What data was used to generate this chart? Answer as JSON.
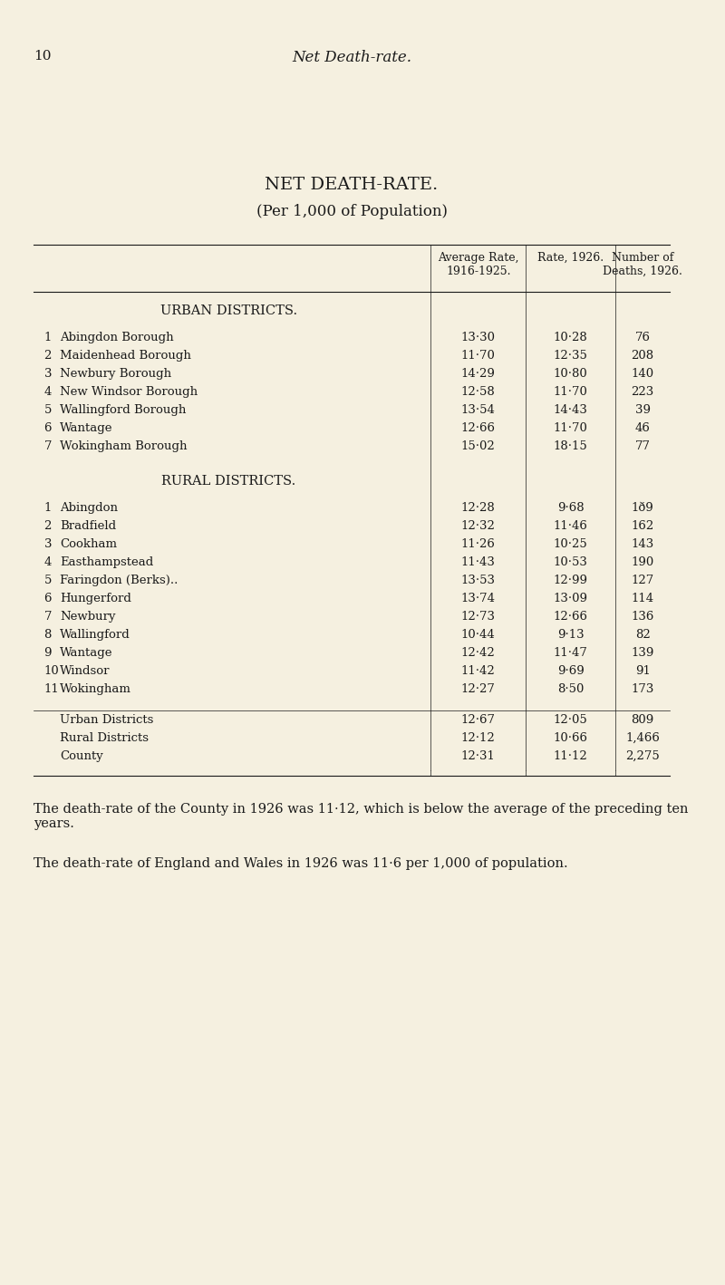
{
  "page_number": "10",
  "page_header": "Net Death-rate.",
  "title": "NET DEATH-RATE.",
  "subtitle": "(Per 1,000 of Population)",
  "col_headers": [
    "Average Rate,\n1916-1925.",
    "Rate, 1926.",
    "Number of\nDeaths, 1926."
  ],
  "urban_section_label": "URBAN DISTRICTS.",
  "urban_rows": [
    [
      "1",
      "Abingdon Borough",
      "13·30",
      "10·28",
      "76"
    ],
    [
      "2",
      "Maidenhead Borough",
      "11·70",
      "12·35",
      "208"
    ],
    [
      "3",
      "Newbury Borough",
      "14·29",
      "10·80",
      "140"
    ],
    [
      "4",
      "New Windsor Borough",
      "12·58",
      "11·70",
      "223"
    ],
    [
      "5",
      "Wallingford Borough",
      "13·54",
      "14·43",
      "39"
    ],
    [
      "6",
      "Wantage",
      "12·66",
      "11·70",
      "46"
    ],
    [
      "7",
      "Wokingham Borough",
      "15·02",
      "18·15",
      "77"
    ]
  ],
  "rural_section_label": "RURAL DISTRICTS.",
  "rural_rows": [
    [
      "1",
      "Abingdon",
      "12·28",
      "9·68",
      "1ð9"
    ],
    [
      "2",
      "Bradfield",
      "12·32",
      "11·46",
      "162"
    ],
    [
      "3",
      "Cookham",
      "11·26",
      "10·25",
      "143"
    ],
    [
      "4",
      "Easthampstead",
      "11·43",
      "10·53",
      "190"
    ],
    [
      "5",
      "Faringdon (Berks)..",
      "13·53",
      "12·99",
      "127"
    ],
    [
      "6",
      "Hungerford",
      "13·74",
      "13·09",
      "114"
    ],
    [
      "7",
      "Newbury",
      "12·73",
      "12·66",
      "136"
    ],
    [
      "8",
      "Wallingford",
      "10·44",
      "9·13",
      "82"
    ],
    [
      "9",
      "Wantage",
      "12·42",
      "11·47",
      "139"
    ],
    [
      "10",
      "Windsor",
      "11·42",
      "9·69",
      "91"
    ],
    [
      "11",
      "Wokingham",
      "12·27",
      "8·50",
      "173"
    ]
  ],
  "summary_rows": [
    [
      "Urban Districts",
      "12·67",
      "12·05",
      "809"
    ],
    [
      "Rural Districts",
      "12·12",
      "10·66",
      "1,466"
    ],
    [
      "County",
      "12·31",
      "11·12",
      "2,275"
    ]
  ],
  "footnote1": "The death-rate of the County in 1926 was 11·12, which is below the average of the preceding ten years.",
  "footnote2": "The death-rate of England and Wales in 1926 was 11·6 per 1,000 of population.",
  "bg_color": "#f5f0e0",
  "text_color": "#1a1a1a"
}
